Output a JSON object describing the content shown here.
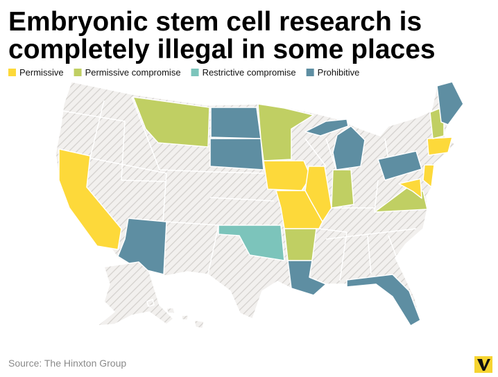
{
  "title": [
    "Embryonic stem cell research is",
    "completely illegal in some places"
  ],
  "legend": [
    {
      "label": "Permissive",
      "color": "#fdd93a"
    },
    {
      "label": "Permissive compromise",
      "color": "#c0cf63"
    },
    {
      "label": "Restrictive compromise",
      "color": "#7cc4bb"
    },
    {
      "label": "Prohibitive",
      "color": "#5e8ea2"
    }
  ],
  "source": "Source: The Hinxton Group"
}
